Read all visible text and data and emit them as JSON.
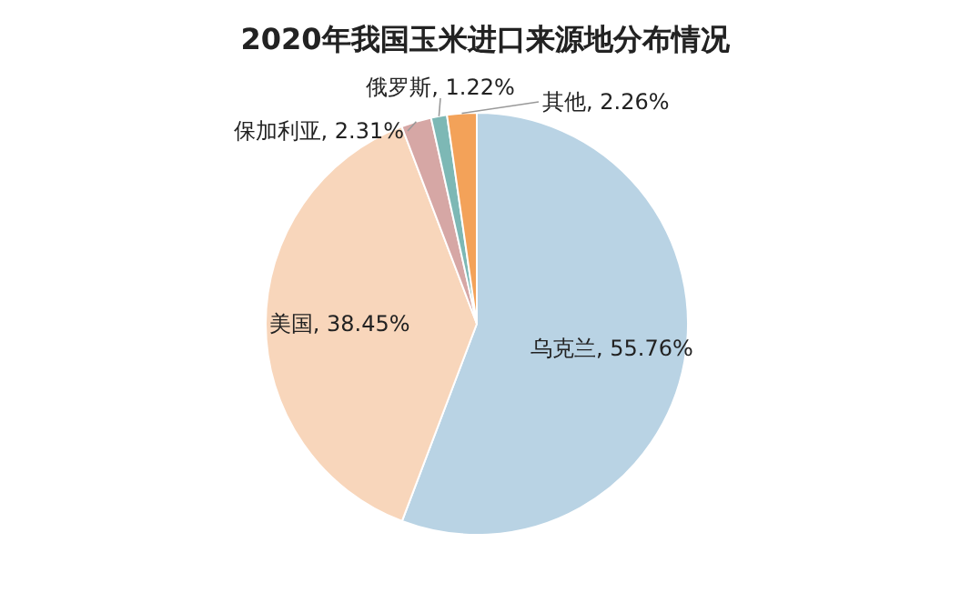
{
  "chart_data": {
    "type": "pie",
    "title": "2020年我国玉米进口来源地分布情况",
    "categories": [
      "乌克兰",
      "美国",
      "保加利亚",
      "俄罗斯",
      "其他"
    ],
    "values": [
      55.76,
      38.45,
      2.31,
      1.22,
      2.26
    ],
    "value_labels": [
      "55.76%",
      "38.45%",
      "2.31%",
      "1.22%",
      "2.26%"
    ],
    "colors": [
      "#b9d3e4",
      "#f8d6bb",
      "#d6a7a5",
      "#7db8b5",
      "#f3a259"
    ],
    "legend": false
  }
}
